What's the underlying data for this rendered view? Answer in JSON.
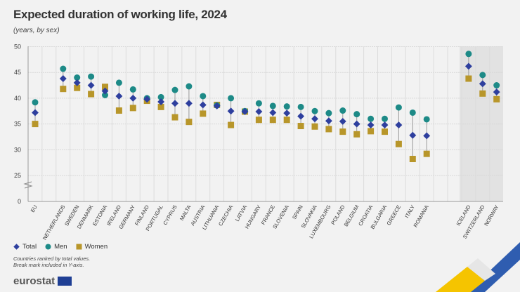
{
  "title": "Expected duration of working life, 2024",
  "subtitle": "(years, by sex)",
  "legend": {
    "total": "Total",
    "men": "Men",
    "women": "Women"
  },
  "notes": [
    "Countries ranked by total values.",
    "Break mark included in Y-axis."
  ],
  "logo": "eurostat",
  "colors": {
    "total": "#2e3f9e",
    "men": "#1d8a87",
    "women": "#b8962a",
    "shade": "#e2e2e2"
  },
  "chart_data": {
    "type": "scatter",
    "title": "Expected duration of working life, 2024",
    "ylim": [
      0,
      50
    ],
    "yticks": [
      0,
      25,
      30,
      35,
      40,
      45,
      50
    ],
    "y_axis_break": true,
    "grid": true,
    "legend_position": "bottom-left",
    "categories": [
      "EU",
      "Netherlands",
      "Sweden",
      "Denmark",
      "Estonia",
      "Ireland",
      "Germany",
      "Finland",
      "Portugal",
      "Cyprus",
      "Malta",
      "Austria",
      "Lithuania",
      "Czechia",
      "Latvia",
      "Hungary",
      "France",
      "Slovenia",
      "Spain",
      "Slovakia",
      "Luxembourg",
      "Poland",
      "Belgium",
      "Croatia",
      "Bulgaria",
      "Greece",
      "Italy",
      "Romania",
      "Iceland",
      "Switzerland",
      "Norway"
    ],
    "series": [
      {
        "name": "Total",
        "values": [
          37.2,
          43.8,
          43.0,
          42.5,
          41.4,
          40.4,
          40.0,
          39.8,
          39.3,
          39.0,
          39.0,
          38.7,
          38.5,
          37.5,
          37.4,
          37.4,
          37.2,
          37.1,
          36.5,
          36.0,
          35.6,
          35.5,
          35.0,
          34.8,
          34.8,
          34.8,
          32.8,
          32.7,
          46.2,
          42.8,
          41.2
        ]
      },
      {
        "name": "Men",
        "values": [
          39.2,
          45.7,
          44.0,
          44.2,
          40.6,
          43.0,
          41.7,
          40.0,
          40.2,
          41.6,
          42.3,
          40.4,
          38.6,
          40.0,
          37.5,
          39.0,
          38.5,
          38.4,
          38.3,
          37.5,
          37.1,
          37.6,
          36.9,
          36.0,
          36.0,
          38.2,
          37.2,
          35.9,
          48.6,
          44.5,
          42.5
        ]
      },
      {
        "name": "Women",
        "values": [
          35.0,
          41.8,
          42.0,
          40.8,
          42.2,
          37.6,
          38.1,
          39.5,
          38.3,
          36.3,
          35.4,
          37.0,
          38.7,
          34.8,
          37.4,
          35.8,
          35.8,
          35.8,
          34.6,
          34.5,
          34.0,
          33.5,
          33.0,
          33.6,
          33.5,
          31.1,
          28.2,
          29.2,
          43.8,
          40.9,
          39.8
        ]
      }
    ]
  }
}
